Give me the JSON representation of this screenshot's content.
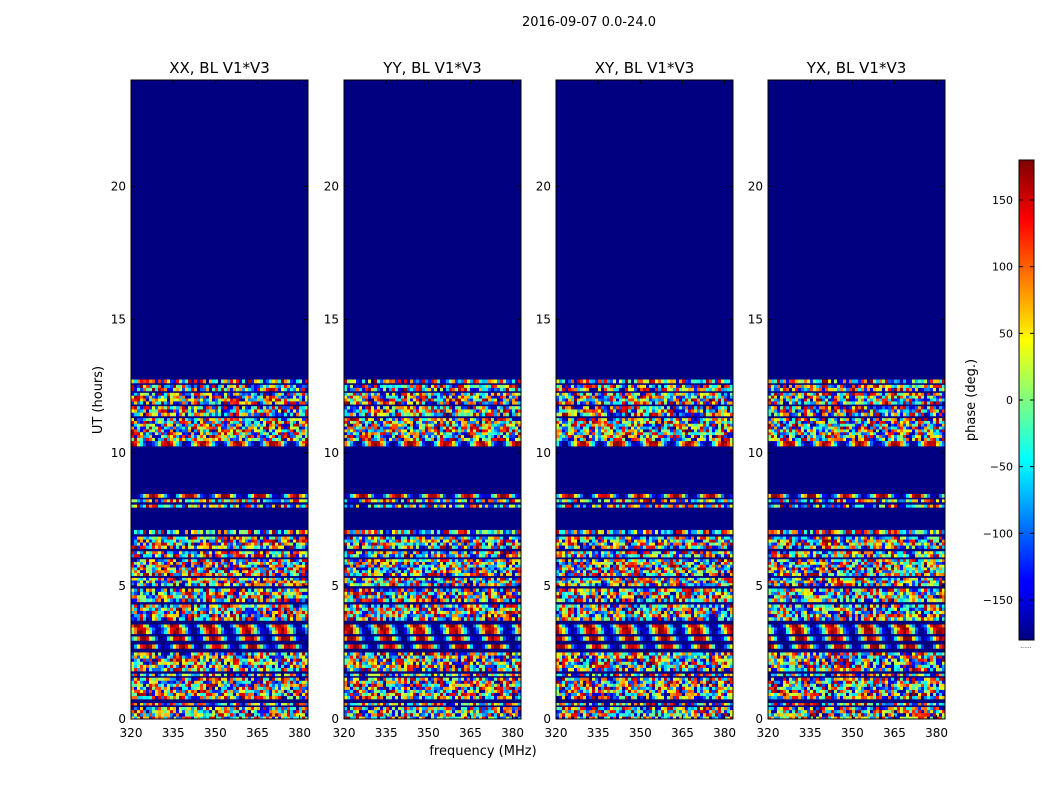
{
  "suptitle": "2016-09-07 0.0-24.0",
  "chart_data": [
    {
      "type": "heatmap",
      "title": "XX, BL V1*V3",
      "xlabel": "",
      "ylabel": "UT (hours)",
      "x_ticks": [
        "320",
        "335",
        "350",
        "365",
        "380"
      ],
      "y_ticks": [
        "0",
        "5",
        "10",
        "15",
        "20"
      ],
      "x_range": [
        320,
        383
      ],
      "y_range": [
        0,
        24
      ]
    },
    {
      "type": "heatmap",
      "title": "YY, BL V1*V3",
      "xlabel": "frequency (MHz)",
      "ylabel": "",
      "x_ticks": [
        "320",
        "335",
        "350",
        "365",
        "380"
      ],
      "y_ticks": [
        "0",
        "5",
        "10",
        "15",
        "20"
      ],
      "x_range": [
        320,
        383
      ],
      "y_range": [
        0,
        24
      ]
    },
    {
      "type": "heatmap",
      "title": "XY, BL V1*V3",
      "xlabel": "",
      "ylabel": "",
      "x_ticks": [
        "320",
        "335",
        "350",
        "365",
        "380"
      ],
      "y_ticks": [
        "0",
        "5",
        "10",
        "15",
        "20"
      ],
      "x_range": [
        320,
        383
      ],
      "y_range": [
        0,
        24
      ]
    },
    {
      "type": "heatmap",
      "title": "YX, BL V1*V3",
      "xlabel": "",
      "ylabel": "",
      "x_ticks": [
        "320",
        "335",
        "350",
        "365",
        "380"
      ],
      "y_ticks": [
        "0",
        "5",
        "10",
        "15",
        "20"
      ],
      "x_range": [
        320,
        383
      ],
      "y_range": [
        0,
        24
      ]
    }
  ],
  "time_blocks": [
    {
      "start": 0.0,
      "end": 0.1,
      "kind": "noisy"
    },
    {
      "start": 0.1,
      "end": 0.45,
      "kind": "noisy"
    },
    {
      "start": 0.45,
      "end": 0.52,
      "kind": "empty"
    },
    {
      "start": 0.52,
      "end": 0.6,
      "kind": "noisy"
    },
    {
      "start": 0.6,
      "end": 0.75,
      "kind": "empty"
    },
    {
      "start": 0.75,
      "end": 1.55,
      "kind": "noisy"
    },
    {
      "start": 1.55,
      "end": 1.62,
      "kind": "empty"
    },
    {
      "start": 1.62,
      "end": 1.7,
      "kind": "noisy"
    },
    {
      "start": 1.7,
      "end": 1.8,
      "kind": "empty"
    },
    {
      "start": 1.8,
      "end": 2.5,
      "kind": "noisy"
    },
    {
      "start": 2.5,
      "end": 2.65,
      "kind": "empty"
    },
    {
      "start": 2.65,
      "end": 2.8,
      "kind": "fringe"
    },
    {
      "start": 2.8,
      "end": 2.95,
      "kind": "empty"
    },
    {
      "start": 2.95,
      "end": 3.1,
      "kind": "fringe"
    },
    {
      "start": 3.1,
      "end": 3.2,
      "kind": "empty"
    },
    {
      "start": 3.2,
      "end": 3.45,
      "kind": "fringe"
    },
    {
      "start": 3.45,
      "end": 3.55,
      "kind": "fringe"
    },
    {
      "start": 3.55,
      "end": 3.7,
      "kind": "empty"
    },
    {
      "start": 3.7,
      "end": 4.3,
      "kind": "noisy"
    },
    {
      "start": 4.3,
      "end": 4.4,
      "kind": "empty"
    },
    {
      "start": 4.4,
      "end": 4.9,
      "kind": "noisy"
    },
    {
      "start": 4.9,
      "end": 5.0,
      "kind": "empty"
    },
    {
      "start": 5.0,
      "end": 5.3,
      "kind": "noisy"
    },
    {
      "start": 5.3,
      "end": 5.38,
      "kind": "empty"
    },
    {
      "start": 5.38,
      "end": 6.0,
      "kind": "noisy"
    },
    {
      "start": 6.0,
      "end": 6.08,
      "kind": "empty"
    },
    {
      "start": 6.08,
      "end": 6.3,
      "kind": "noisy"
    },
    {
      "start": 6.3,
      "end": 6.4,
      "kind": "empty"
    },
    {
      "start": 6.4,
      "end": 6.85,
      "kind": "noisy"
    },
    {
      "start": 6.85,
      "end": 6.95,
      "kind": "empty"
    },
    {
      "start": 6.95,
      "end": 7.1,
      "kind": "noisy"
    },
    {
      "start": 7.1,
      "end": 7.95,
      "kind": "empty"
    },
    {
      "start": 7.95,
      "end": 8.05,
      "kind": "noisy"
    },
    {
      "start": 8.05,
      "end": 8.15,
      "kind": "empty"
    },
    {
      "start": 8.15,
      "end": 8.25,
      "kind": "noisy"
    },
    {
      "start": 8.25,
      "end": 8.32,
      "kind": "empty"
    },
    {
      "start": 8.32,
      "end": 8.45,
      "kind": "fringe"
    },
    {
      "start": 8.45,
      "end": 10.25,
      "kind": "empty"
    },
    {
      "start": 10.25,
      "end": 10.45,
      "kind": "fringe"
    },
    {
      "start": 10.45,
      "end": 11.3,
      "kind": "noisy"
    },
    {
      "start": 11.3,
      "end": 11.38,
      "kind": "empty"
    },
    {
      "start": 11.38,
      "end": 11.75,
      "kind": "noisy"
    },
    {
      "start": 11.75,
      "end": 11.82,
      "kind": "empty"
    },
    {
      "start": 11.82,
      "end": 12.25,
      "kind": "noisy"
    },
    {
      "start": 12.25,
      "end": 12.32,
      "kind": "empty"
    },
    {
      "start": 12.32,
      "end": 12.55,
      "kind": "noisy"
    },
    {
      "start": 12.55,
      "end": 12.62,
      "kind": "empty"
    },
    {
      "start": 12.62,
      "end": 12.75,
      "kind": "noisy"
    },
    {
      "start": 12.75,
      "end": 24.0,
      "kind": "empty"
    }
  ],
  "colorbar": {
    "label": "phase (deg.)",
    "range": [
      -180,
      180
    ],
    "ticks": [
      "150",
      "100",
      "50",
      "0",
      "−50",
      "−100",
      "−150"
    ],
    "tick_values": [
      150,
      100,
      50,
      0,
      -50,
      -100,
      -150
    ],
    "footer": "......"
  },
  "colors": {
    "background_fill": "#000080",
    "frame": "#000000"
  }
}
